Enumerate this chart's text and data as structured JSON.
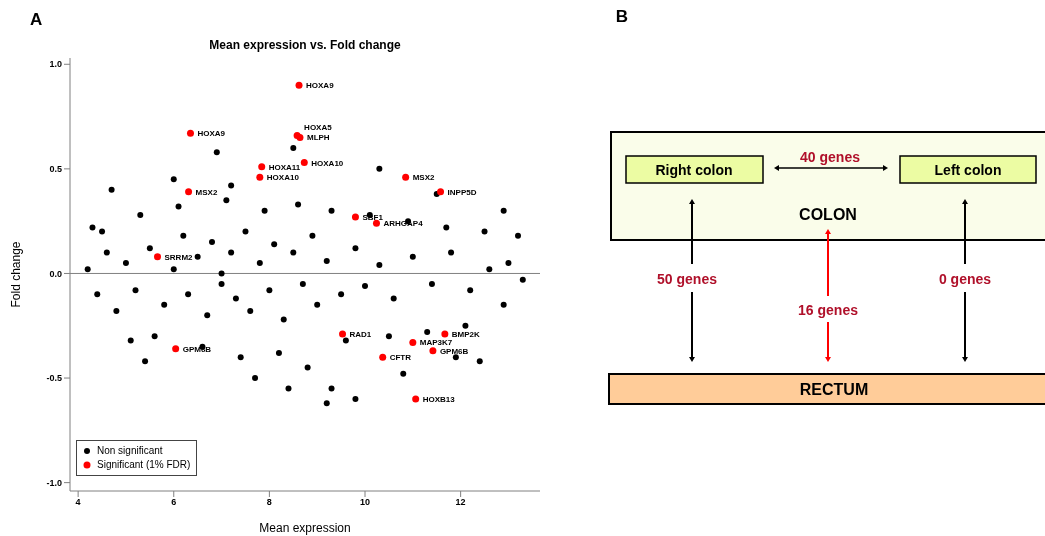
{
  "chart_data": [
    {
      "type": "scatter",
      "title": "Mean expression vs. Fold change",
      "xlabel": "Mean expression",
      "ylabel": "Fold change",
      "xlim": [
        3.83,
        13.66
      ],
      "ylim": [
        -1.04,
        1.03
      ],
      "xticks": [
        4,
        6,
        8,
        10,
        12
      ],
      "yticks": [
        {
          "value": -1,
          "label": "-1.0"
        },
        {
          "value": -0.5,
          "label": "-0.5"
        },
        {
          "value": 0,
          "label": "0.0"
        },
        {
          "value": 0.5,
          "label": "0.5"
        },
        {
          "value": 1,
          "label": "1.0"
        }
      ],
      "legend": "bottom left",
      "marker": "circle",
      "ref_lines": [
        {
          "axis": "y",
          "value": 0,
          "color": "#808080"
        }
      ],
      "series": [
        {
          "name": "Non significant",
          "color": "#000000",
          "x": [
            5,
            5.2,
            5.5,
            5.8,
            6,
            6.2,
            6.3,
            6.5,
            6.7,
            6.8,
            7,
            7,
            7.2,
            7.3,
            7.5,
            7.6,
            7.8,
            8,
            8.1,
            8.3,
            8.5,
            8.7,
            8.9,
            9,
            9.2,
            9.5,
            9.8,
            10,
            10.3,
            10.6,
            11,
            11.4,
            11.8,
            12.2,
            12.6,
            13,
            13.3,
            4.2,
            4.4,
            4.6,
            4.8,
            4.5,
            5.3,
            5.6,
            6.1,
            6.6,
            7.1,
            7.4,
            7.9,
            8.2,
            8.6,
            8.8,
            9.3,
            9.6,
            10.1,
            10.5,
            10.9,
            11.3,
            11.7,
            12.1,
            12.5,
            12.9,
            4.7,
            5.4,
            6,
            6.9,
            7.7,
            8.5,
            9.3,
            9.8,
            10.3,
            11.5,
            12.4,
            12.9,
            13.2,
            9.2,
            8.4,
            7.2,
            5.1,
            4.3,
            11.9,
            10.8
          ],
          "values": [
            0.05,
            -0.08,
            0.12,
            -0.15,
            0.02,
            0.18,
            -0.1,
            0.08,
            -0.2,
            0.15,
            0,
            -0.05,
            0.1,
            -0.12,
            0.2,
            -0.18,
            0.05,
            -0.08,
            0.14,
            -0.22,
            0.1,
            -0.05,
            0.18,
            -0.15,
            0.06,
            -0.1,
            0.12,
            -0.06,
            0.04,
            -0.12,
            0.08,
            -0.05,
            0.1,
            -0.08,
            0.02,
            0.05,
            -0.03,
            0.02,
            -0.1,
            0.1,
            -0.18,
            0.2,
            0.28,
            -0.3,
            0.32,
            -0.35,
            0.35,
            -0.4,
            0.3,
            -0.38,
            0.33,
            -0.45,
            0.3,
            -0.32,
            0.28,
            -0.3,
            0.25,
            -0.28,
            0.22,
            -0.25,
            0.2,
            -0.15,
            0.4,
            -0.42,
            0.45,
            0.58,
            -0.5,
            0.6,
            -0.55,
            -0.6,
            0.5,
            0.38,
            -0.42,
            0.3,
            0.18,
            -0.62,
            -0.55,
            0.42,
            -0.32,
            0.22,
            -0.4,
            -0.48
          ]
        },
        {
          "name": "Significant (1% FDR)",
          "color": "#ff0000",
          "x": [
            8.62,
            6.35,
            8.58,
            8.64,
            8.73,
            7.84,
            7.8,
            6.31,
            10.85,
            11.58,
            9.8,
            10.24,
            5.66,
            9.53,
            11.67,
            11,
            6.04,
            11.42,
            10.37,
            11.06
          ],
          "values": [
            0.9,
            0.67,
            0.66,
            0.65,
            0.53,
            0.51,
            0.46,
            0.39,
            0.46,
            0.39,
            0.27,
            0.24,
            0.08,
            -0.29,
            -0.29,
            -0.33,
            -0.36,
            -0.37,
            -0.4,
            -0.6
          ]
        }
      ],
      "annotations": [
        "A",
        {
          "text": "HOXA9",
          "x": 8.62,
          "y": 0.9
        },
        {
          "text": "HOXA9",
          "x": 6.35,
          "y": 0.67
        },
        {
          "text": "HOXA5",
          "x": 8.58,
          "y": 0.66
        },
        {
          "text": "MLPH",
          "x": 8.64,
          "y": 0.65
        },
        {
          "text": "HOXA10",
          "x": 8.73,
          "y": 0.53
        },
        {
          "text": "HOXA11",
          "x": 7.84,
          "y": 0.51
        },
        {
          "text": "HOXA10",
          "x": 7.8,
          "y": 0.46
        },
        {
          "text": "MSX2",
          "x": 6.31,
          "y": 0.39
        },
        {
          "text": "MSX2",
          "x": 10.85,
          "y": 0.46
        },
        {
          "text": "INPP5D",
          "x": 11.58,
          "y": 0.39
        },
        {
          "text": "SBF1",
          "x": 9.8,
          "y": 0.27
        },
        {
          "text": "ARHGAP4",
          "x": 10.24,
          "y": 0.24
        },
        {
          "text": "SRRM2",
          "x": 5.66,
          "y": 0.08
        },
        {
          "text": "RAD1",
          "x": 9.53,
          "y": -0.29
        },
        {
          "text": "BMP2K",
          "x": 11.67,
          "y": -0.29
        },
        {
          "text": "MAP3K7",
          "x": 11,
          "y": -0.33
        },
        {
          "text": "GPM6B",
          "x": 6.04,
          "y": -0.36
        },
        {
          "text": "GPM6B",
          "x": 11.42,
          "y": -0.37
        },
        {
          "text": "CFTR",
          "x": 10.37,
          "y": -0.4
        },
        {
          "text": "HOXB13",
          "x": 11.06,
          "y": -0.6
        }
      ]
    },
    {
      "type": "other",
      "annotations": [
        "B",
        "Right colon",
        "Left colon",
        "COLON",
        "RECTUM",
        "40 genes",
        "50 genes",
        "16 genes",
        "0 genes"
      ]
    }
  ]
}
